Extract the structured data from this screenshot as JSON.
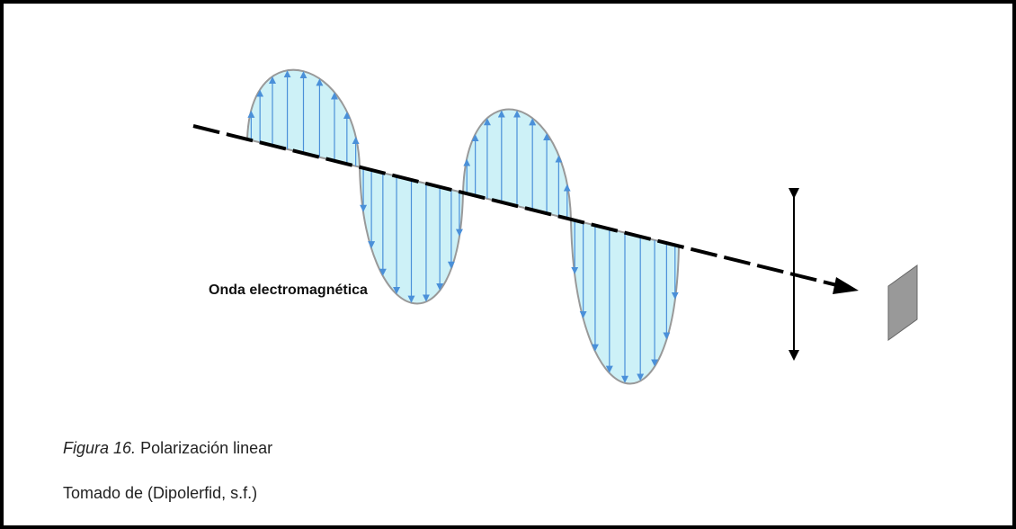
{
  "diagram": {
    "label": "Onda electromagnética"
  },
  "figure": {
    "number": "Figura 16.",
    "caption": "Polarización linear",
    "source": "Tomado de (Dipolerfid, s.f.)"
  }
}
